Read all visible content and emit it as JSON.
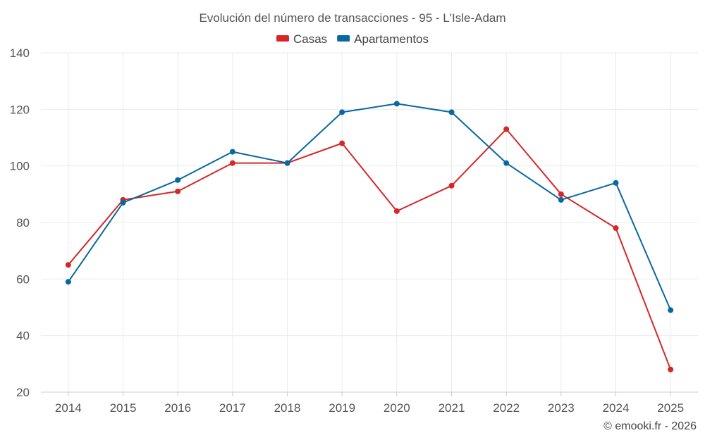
{
  "chart_data": {
    "type": "line",
    "title": "Evolución del número de transacciones - 95 - L'Isle-Adam",
    "xlabel": "",
    "ylabel": "",
    "categories": [
      "2014",
      "2015",
      "2016",
      "2017",
      "2018",
      "2019",
      "2020",
      "2021",
      "2022",
      "2023",
      "2024",
      "2025"
    ],
    "ylim": [
      20,
      140
    ],
    "yticks": [
      20,
      40,
      60,
      80,
      100,
      120,
      140
    ],
    "grid": true,
    "legend_position": "top-center",
    "series": [
      {
        "name": "Casas",
        "color": "#d62728",
        "values": [
          65,
          88,
          91,
          101,
          101,
          108,
          84,
          93,
          113,
          90,
          78,
          28
        ]
      },
      {
        "name": "Apartamentos",
        "color": "#0868a0",
        "values": [
          59,
          87,
          95,
          105,
          101,
          119,
          122,
          119,
          101,
          88,
          94,
          49
        ]
      }
    ]
  },
  "credit": "© emooki.fr - 2026"
}
